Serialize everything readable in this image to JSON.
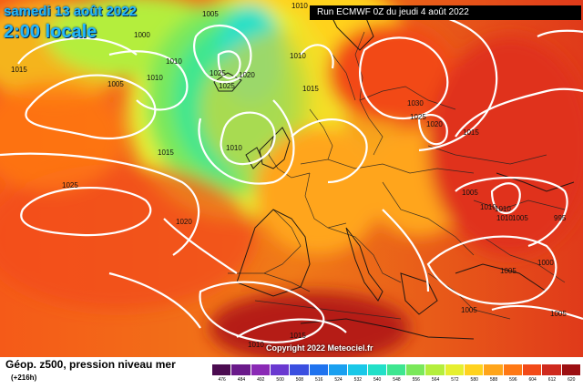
{
  "header": {
    "date_line": "samedi 13 août 2022",
    "time_line": "2:00 locale",
    "run_info": "Run ECMWF 0Z du jeudi 4 août 2022"
  },
  "copyright": "Copyright 2022 Meteociel.fr",
  "legend": {
    "title": "Géop. z500, pression niveau mer",
    "subtitle": "(+216h)",
    "values": [
      "476",
      "484",
      "492",
      "500",
      "508",
      "516",
      "524",
      "532",
      "540",
      "548",
      "556",
      "564",
      "572",
      "580",
      "588",
      "596",
      "604",
      "612",
      "620"
    ],
    "colors": [
      "#4b0c50",
      "#6a1a8a",
      "#8a2ab5",
      "#6a39d0",
      "#3a4fe0",
      "#1f73ef",
      "#1aa0f0",
      "#1ac8e8",
      "#22e0c8",
      "#3ee690",
      "#7ae85a",
      "#b4ee3c",
      "#e6ef30",
      "#ffd21e",
      "#ffa51a",
      "#ff7814",
      "#f24a18",
      "#cf2a1e",
      "#9c0f12"
    ]
  },
  "isobar_labels": [
    "1005",
    "1010",
    "1000",
    "1005",
    "1010",
    "1010",
    "1010",
    "1025",
    "1020",
    "1025",
    "1015",
    "1015",
    "1010",
    "1030",
    "1025",
    "1020",
    "1015",
    "1015",
    "1025",
    "1020",
    "1005",
    "1010",
    "1010",
    "1010",
    "1005",
    "995",
    "1000",
    "1005",
    "1005",
    "1005",
    "1015",
    "1010"
  ],
  "colors": {
    "date_text": "#22b8ff",
    "run_box_bg": "#000000",
    "isobar_line": "#ffffff"
  }
}
